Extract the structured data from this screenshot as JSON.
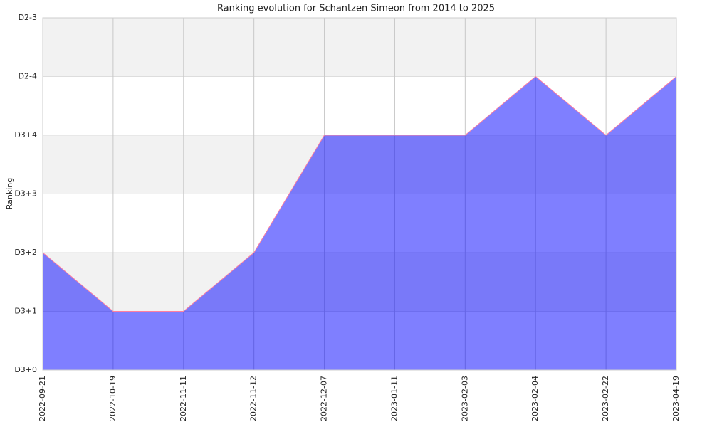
{
  "chart_data": {
    "type": "area",
    "title": "Ranking evolution for Schantzen Simeon from 2014 to 2025",
    "y_label": "Ranking",
    "categories": [
      "2022-09-21",
      "2022-10-19",
      "2022-11-11",
      "2022-11-12",
      "2022-12-07",
      "2023-01-11",
      "2023-02-03",
      "2023-02-04",
      "2023-02-22",
      "2023-04-19"
    ],
    "series": [
      {
        "name": "Ranking",
        "color": "#0000ff",
        "values": [
          2,
          1,
          1,
          2,
          4,
          4,
          4,
          5,
          4,
          5
        ]
      }
    ],
    "line_color": "#ff7f9f",
    "ylim": [
      0,
      6
    ],
    "yticks": [
      {
        "value": 0,
        "label": "D3+0"
      },
      {
        "value": 1,
        "label": "D3+1"
      },
      {
        "value": 2,
        "label": "D3+2"
      },
      {
        "value": 3,
        "label": "D3+3"
      },
      {
        "value": 4,
        "label": "D3+4"
      },
      {
        "value": 5,
        "label": "D2-4"
      },
      {
        "value": 6,
        "label": "D2-3"
      }
    ],
    "grid": true
  }
}
